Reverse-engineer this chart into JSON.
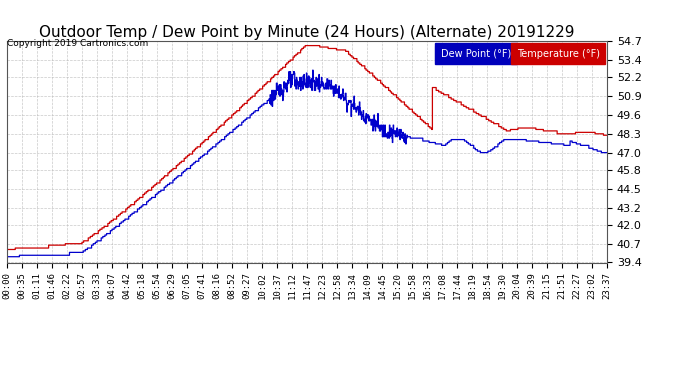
{
  "title": "Outdoor Temp / Dew Point by Minute (24 Hours) (Alternate) 20191229",
  "copyright": "Copyright 2019 Cartronics.com",
  "legend_labels": [
    "Dew Point (°F)",
    "Temperature (°F)"
  ],
  "legend_colors": [
    "#0000bb",
    "#cc0000"
  ],
  "temp_color": "#cc0000",
  "dew_color": "#0000cc",
  "bg_color": "#ffffff",
  "plot_bg_color": "#ffffff",
  "grid_color": "#bbbbbb",
  "ylim_min": 39.4,
  "ylim_max": 54.7,
  "yticks": [
    39.4,
    40.7,
    42.0,
    43.2,
    44.5,
    45.8,
    47.0,
    48.3,
    49.6,
    50.9,
    52.2,
    53.4,
    54.7
  ],
  "title_fontsize": 11,
  "xlabel_fontsize": 6.5,
  "ylabel_fontsize": 8,
  "figwidth": 6.9,
  "figheight": 3.75,
  "dpi": 100,
  "xtick_labels": [
    "00:00",
    "00:35",
    "01:11",
    "01:46",
    "02:22",
    "02:57",
    "03:33",
    "04:07",
    "04:42",
    "05:18",
    "05:54",
    "06:29",
    "07:05",
    "07:41",
    "08:16",
    "08:52",
    "09:27",
    "10:02",
    "10:37",
    "11:12",
    "11:47",
    "12:23",
    "12:58",
    "13:34",
    "14:09",
    "14:45",
    "15:20",
    "15:58",
    "16:33",
    "17:08",
    "17:44",
    "18:19",
    "18:54",
    "19:30",
    "20:04",
    "20:39",
    "21:15",
    "21:51",
    "22:27",
    "23:02",
    "23:37"
  ]
}
